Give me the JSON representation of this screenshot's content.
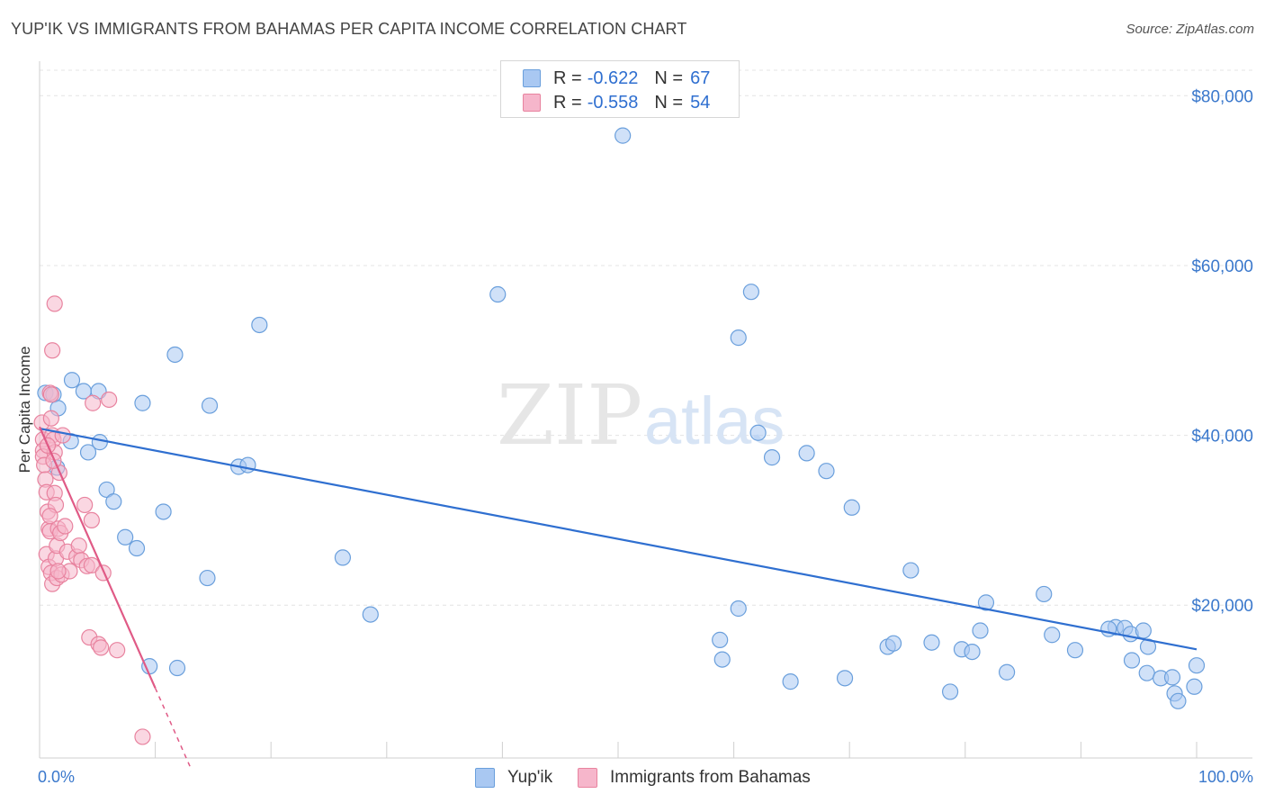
{
  "header": {
    "title": "YUP'IK VS IMMIGRANTS FROM BAHAMAS PER CAPITA INCOME CORRELATION CHART",
    "source": "Source: ZipAtlas.com"
  },
  "watermark": {
    "zip": "ZIP",
    "atlas": "atlas"
  },
  "stats_legend": {
    "rows": [
      {
        "r_label": "R =",
        "r_value": "-0.622",
        "n_label": "N =",
        "n_value": "67",
        "color": "#a9c8f2"
      },
      {
        "r_label": "R =",
        "r_value": "-0.558",
        "n_label": "N =",
        "n_value": "54",
        "color": "#f6b6cb"
      }
    ]
  },
  "bottom_legend": {
    "items": [
      {
        "label": "Yup'ik",
        "color": "#a9c8f2"
      },
      {
        "label": "Immigrants from Bahamas",
        "color": "#f6b6cb"
      }
    ]
  },
  "chart_data": {
    "type": "scatter",
    "ylabel": "Per Capita Income",
    "x_tick_labels": [
      "0.0%",
      "100.0%"
    ],
    "y_tick_labels": [
      "$20,000",
      "$40,000",
      "$60,000",
      "$80,000"
    ],
    "y_ticks": [
      20000,
      40000,
      60000,
      80000
    ],
    "xlim": [
      0,
      100
    ],
    "ylim": [
      2000,
      83000
    ],
    "grid": true,
    "series": [
      {
        "name": "Yup'ik",
        "color": "#a9c8f2",
        "stroke": "#6a9fdc",
        "line_color": "#2f6fd0",
        "trend": {
          "x0": 0,
          "y0": 40800,
          "x1": 100,
          "y1": 14800,
          "dashed_from": null
        },
        "points": [
          [
            0.5,
            45000
          ],
          [
            1.2,
            44800
          ],
          [
            1.6,
            43200
          ],
          [
            1.5,
            36200
          ],
          [
            2.8,
            46500
          ],
          [
            3.8,
            45200
          ],
          [
            5.1,
            45200
          ],
          [
            2.7,
            39300
          ],
          [
            5.2,
            39200
          ],
          [
            4.2,
            38000
          ],
          [
            5.8,
            33600
          ],
          [
            6.4,
            32200
          ],
          [
            7.4,
            28000
          ],
          [
            8.4,
            26700
          ],
          [
            8.9,
            43800
          ],
          [
            10.7,
            31000
          ],
          [
            11.7,
            49500
          ],
          [
            14.7,
            43500
          ],
          [
            17.2,
            36300
          ],
          [
            18.0,
            36500
          ],
          [
            19.0,
            53000
          ],
          [
            9.5,
            12800
          ],
          [
            11.9,
            12600
          ],
          [
            14.5,
            23200
          ],
          [
            26.2,
            25600
          ],
          [
            28.6,
            18900
          ],
          [
            39.6,
            56600
          ],
          [
            50.4,
            75300
          ],
          [
            59.0,
            13600
          ],
          [
            58.8,
            15900
          ],
          [
            60.4,
            19600
          ],
          [
            60.4,
            51500
          ],
          [
            61.5,
            56900
          ],
          [
            62.1,
            40300
          ],
          [
            63.3,
            37400
          ],
          [
            64.9,
            11000
          ],
          [
            66.3,
            37900
          ],
          [
            68.0,
            35800
          ],
          [
            69.6,
            11400
          ],
          [
            70.2,
            31500
          ],
          [
            73.3,
            15100
          ],
          [
            73.8,
            15500
          ],
          [
            75.3,
            24100
          ],
          [
            77.1,
            15600
          ],
          [
            78.7,
            9800
          ],
          [
            79.7,
            14800
          ],
          [
            80.6,
            14500
          ],
          [
            81.3,
            17000
          ],
          [
            81.8,
            20300
          ],
          [
            83.6,
            12100
          ],
          [
            86.8,
            21300
          ],
          [
            87.5,
            16500
          ],
          [
            89.5,
            14700
          ],
          [
            93.0,
            17400
          ],
          [
            93.8,
            17300
          ],
          [
            94.3,
            16600
          ],
          [
            95.4,
            17000
          ],
          [
            94.4,
            13500
          ],
          [
            95.8,
            15100
          ],
          [
            95.7,
            12000
          ],
          [
            96.9,
            11400
          ],
          [
            97.9,
            11500
          ],
          [
            98.1,
            9600
          ],
          [
            98.4,
            8700
          ],
          [
            99.8,
            10400
          ],
          [
            100.0,
            12900
          ],
          [
            92.4,
            17200
          ]
        ]
      },
      {
        "name": "Immigrants from Bahamas",
        "color": "#f6b6cb",
        "stroke": "#e8839f",
        "line_color": "#e05a86",
        "trend": {
          "x0": 0,
          "y0": 41000,
          "x1": 13,
          "y1": 1000,
          "dashed_from": 10
        },
        "points": [
          [
            0.2,
            41500
          ],
          [
            0.3,
            39500
          ],
          [
            0.3,
            38200
          ],
          [
            0.3,
            37500
          ],
          [
            0.4,
            36500
          ],
          [
            0.5,
            34800
          ],
          [
            0.6,
            33300
          ],
          [
            0.7,
            31000
          ],
          [
            0.8,
            29000
          ],
          [
            0.9,
            28700
          ],
          [
            0.6,
            26000
          ],
          [
            0.8,
            24500
          ],
          [
            1.0,
            23800
          ],
          [
            1.1,
            22500
          ],
          [
            0.9,
            45000
          ],
          [
            1.0,
            42000
          ],
          [
            1.1,
            40000
          ],
          [
            1.2,
            39500
          ],
          [
            1.3,
            38000
          ],
          [
            1.0,
            44800
          ],
          [
            1.1,
            50000
          ],
          [
            1.3,
            55500
          ],
          [
            1.3,
            33200
          ],
          [
            1.4,
            31800
          ],
          [
            1.4,
            25500
          ],
          [
            1.5,
            27000
          ],
          [
            1.5,
            23200
          ],
          [
            1.6,
            29000
          ],
          [
            1.7,
            35600
          ],
          [
            1.8,
            28500
          ],
          [
            1.9,
            23600
          ],
          [
            2.0,
            40000
          ],
          [
            2.2,
            29300
          ],
          [
            2.4,
            26300
          ],
          [
            2.6,
            24000
          ],
          [
            3.2,
            25700
          ],
          [
            3.4,
            27000
          ],
          [
            3.6,
            25300
          ],
          [
            3.9,
            31800
          ],
          [
            4.1,
            24600
          ],
          [
            4.3,
            16200
          ],
          [
            4.5,
            30000
          ],
          [
            4.5,
            24700
          ],
          [
            4.6,
            43800
          ],
          [
            5.1,
            15400
          ],
          [
            5.3,
            15000
          ],
          [
            5.5,
            23800
          ],
          [
            6.0,
            44200
          ],
          [
            6.7,
            14700
          ],
          [
            8.9,
            4500
          ],
          [
            0.7,
            38800
          ],
          [
            1.2,
            37000
          ],
          [
            0.9,
            30500
          ],
          [
            1.6,
            24000
          ]
        ]
      }
    ]
  }
}
